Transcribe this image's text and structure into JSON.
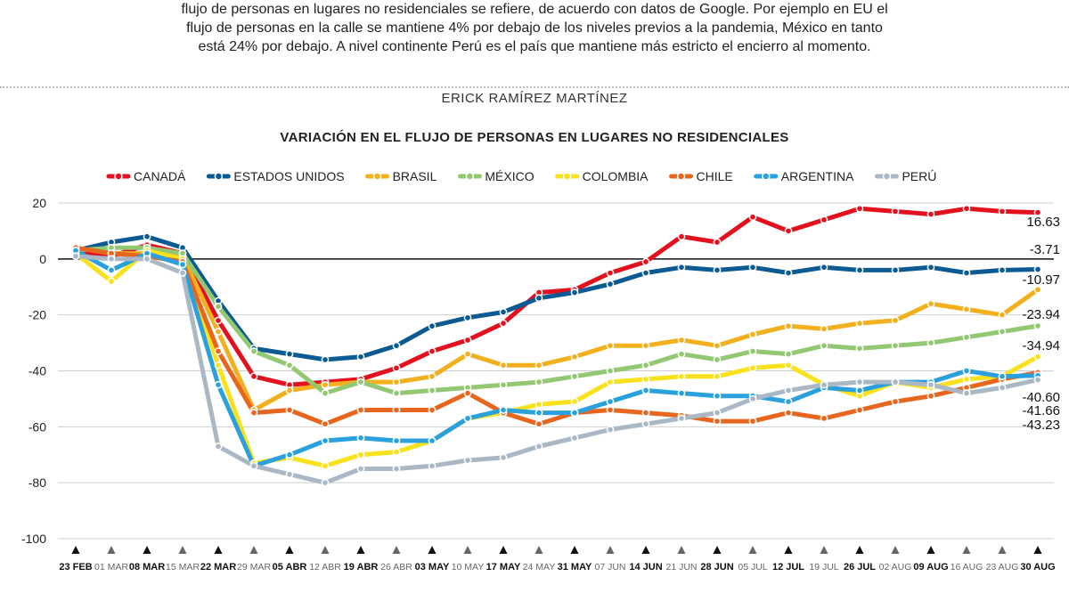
{
  "intro": {
    "line1": "flujo de personas en lugares no residenciales se refiere, de acuerdo con datos de Google. Por ejemplo en EU el",
    "line2": "flujo de personas en la calle se mantiene 4% por debajo de los niveles previos a la pandemia, México en tanto",
    "line3": "está 24% por debajo. A nivel continente Perú es el país que mantiene más estricto el encierro al momento."
  },
  "byline": "ERICK RAMÍREZ MARTÍNEZ",
  "chart_data": {
    "type": "line",
    "title": "VARIACIÓN EN EL FLUJO DE PERSONAS EN LUGARES NO RESIDENCIALES",
    "xlabel": "",
    "ylabel": "",
    "ylim": [
      -100,
      20
    ],
    "yticks": [
      20,
      0,
      -20,
      -40,
      -60,
      -80,
      -100
    ],
    "grid": true,
    "legend": "top",
    "categories": [
      "23 FEB",
      "01 MAR",
      "08 MAR",
      "15 MAR",
      "22 MAR",
      "29 MAR",
      "05 ABR",
      "12 ABR",
      "19 ABR",
      "26 ABR",
      "03 MAY",
      "10 MAY",
      "17 MAY",
      "24 MAY",
      "31 MAY",
      "07 JUN",
      "14 JUN",
      "21 JUN",
      "28 JUN",
      "05 JUL",
      "12 JUL",
      "19 JUL",
      "26 JUL",
      "02 AUG",
      "09 AUG",
      "16 AUG",
      "23 AUG",
      "30 AUG"
    ],
    "categories_emphasis": [
      true,
      false,
      true,
      false,
      true,
      false,
      true,
      false,
      true,
      false,
      true,
      false,
      true,
      false,
      true,
      false,
      true,
      false,
      true,
      false,
      true,
      false,
      true,
      false,
      true,
      false,
      false,
      true
    ],
    "series": [
      {
        "name": "CANADÁ",
        "color": "#e3101e",
        "end_label": "16.63",
        "values": [
          3,
          1,
          5,
          2,
          -22,
          -42,
          -45,
          -44,
          -43,
          -39,
          -33,
          -29,
          -23,
          -12,
          -11,
          -5,
          -1,
          8,
          6,
          15,
          10,
          14,
          18,
          17,
          16,
          18,
          17,
          16.63
        ]
      },
      {
        "name": "ESTADOS UNIDOS",
        "color": "#0c5a93",
        "end_label": "-3.71",
        "values": [
          3,
          6,
          8,
          4,
          -15,
          -32,
          -34,
          -36,
          -35,
          -31,
          -24,
          -21,
          -19,
          -14,
          -12,
          -9,
          -5,
          -3,
          -4,
          -3,
          -5,
          -3,
          -4,
          -4,
          -3,
          -5,
          -4,
          -3.71
        ]
      },
      {
        "name": "BRASIL",
        "color": "#f2b01e",
        "end_label": "-10.97",
        "values": [
          4,
          2,
          2,
          1,
          -26,
          -54,
          -47,
          -45,
          -44,
          -44,
          -42,
          -34,
          -38,
          -38,
          -35,
          -31,
          -31,
          -29,
          -31,
          -27,
          -24,
          -25,
          -23,
          -22,
          -16,
          -18,
          -20,
          -10.97
        ]
      },
      {
        "name": "MÉXICO",
        "color": "#93c873",
        "end_label": "-23.94",
        "values": [
          3,
          4,
          4,
          2,
          -17,
          -33,
          -38,
          -48,
          -44,
          -48,
          -47,
          -46,
          -45,
          -44,
          -42,
          -40,
          -38,
          -34,
          -36,
          -33,
          -34,
          -31,
          -32,
          -31,
          -30,
          -28,
          -26,
          -23.94
        ]
      },
      {
        "name": "COLOMBIA",
        "color": "#f9e11b",
        "end_label": "-34.94",
        "values": [
          2,
          -8,
          3,
          0,
          -38,
          -73,
          -71,
          -74,
          -70,
          -69,
          -65,
          -57,
          -55,
          -52,
          -51,
          -44,
          -43,
          -42,
          -42,
          -39,
          -38,
          -45,
          -49,
          -44,
          -46,
          -43,
          -42,
          -34.94
        ]
      },
      {
        "name": "CHILE",
        "color": "#e8651e",
        "end_label": "-40.60",
        "values": [
          4,
          2,
          1,
          -1,
          -33,
          -55,
          -54,
          -59,
          -54,
          -54,
          -54,
          -48,
          -55,
          -59,
          -55,
          -54,
          -55,
          -56,
          -58,
          -58,
          -55,
          -57,
          -54,
          -51,
          -49,
          -46,
          -43,
          -40.6
        ]
      },
      {
        "name": "ARGENTINA",
        "color": "#2aa1dc",
        "end_label": "-41.66",
        "values": [
          3,
          -4,
          2,
          -2,
          -45,
          -74,
          -70,
          -65,
          -64,
          -65,
          -65,
          -57,
          -54,
          -55,
          -55,
          -51,
          -47,
          -48,
          -49,
          -49,
          -51,
          -46,
          -47,
          -44,
          -44,
          -40,
          -42,
          -41.66
        ]
      },
      {
        "name": "PERÚ",
        "color": "#aab8c6",
        "end_label": "-43.23",
        "values": [
          1,
          0,
          0,
          -5,
          -67,
          -74,
          -77,
          -80,
          -75,
          -75,
          -74,
          -72,
          -71,
          -67,
          -64,
          -61,
          -59,
          -57,
          -55,
          -50,
          -47,
          -45,
          -44,
          -44,
          -45,
          -48,
          -46,
          -43.23
        ]
      }
    ]
  }
}
